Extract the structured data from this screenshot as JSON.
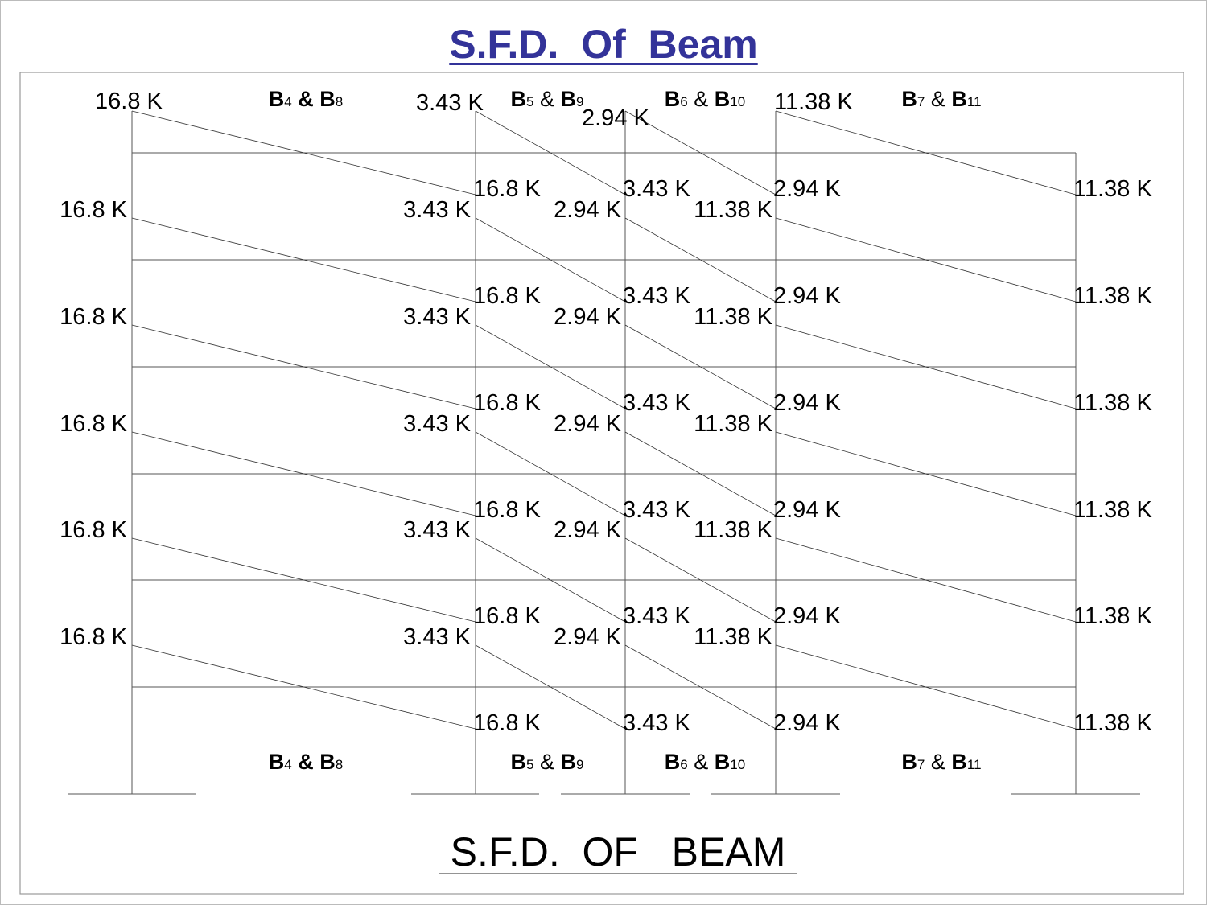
{
  "title": "S.F.D.  Of  Beam",
  "caption": "S.F.D.  OF   BEAM",
  "colors": {
    "title": "#333399",
    "lines": "#000000",
    "frame": "#999999"
  },
  "bays": [
    {
      "label": [
        "B",
        "4",
        "B",
        "8"
      ],
      "start_shear": "16.8 K",
      "end_shear": "16.8 K"
    },
    {
      "label": [
        "B",
        "5",
        "B",
        "9"
      ],
      "start_shear": "3.43 K",
      "end_shear": "3.43 K"
    },
    {
      "label": [
        "B",
        "6",
        "B",
        "10"
      ],
      "start_shear": "2.94 K",
      "end_shear": "2.94 K"
    },
    {
      "label": [
        "B",
        "7",
        "B",
        "11"
      ],
      "start_shear": "11.38 K",
      "end_shear": "11.38 K"
    }
  ],
  "ampersand": "&"
}
